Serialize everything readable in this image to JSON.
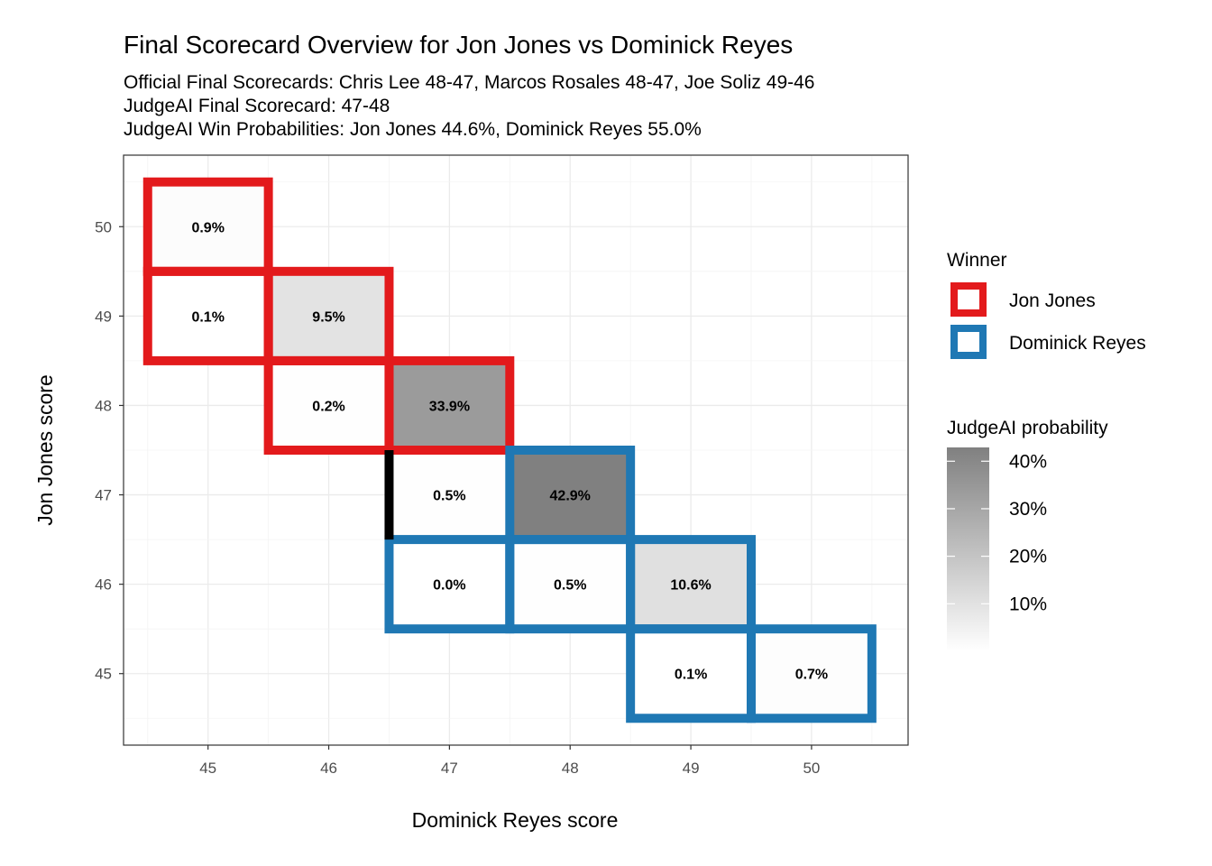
{
  "chart_data": {
    "type": "heatmap",
    "title": "Final Scorecard Overview for Jon Jones vs Dominick Reyes",
    "subtitle_lines": [
      "Official Final Scorecards: Chris Lee 48-47, Marcos Rosales 48-47, Joe Soliz 49-46",
      "JudgeAI Final Scorecard: 47-48",
      "JudgeAI Win Probabilities: Jon Jones 44.6%, Dominick Reyes 55.0%"
    ],
    "xlabel": "Dominick Reyes score",
    "ylabel": "Jon Jones score",
    "x_ticks": [
      45,
      46,
      47,
      48,
      49,
      50
    ],
    "y_ticks": [
      45,
      46,
      47,
      48,
      49,
      50
    ],
    "xlim": [
      44.3,
      50.8
    ],
    "ylim": [
      44.2,
      50.8
    ],
    "grid": true,
    "cells": [
      {
        "x": 45,
        "y": 50,
        "prob": 0.9,
        "label": "0.9%",
        "winner": "Jon Jones"
      },
      {
        "x": 45,
        "y": 49,
        "prob": 0.1,
        "label": "0.1%",
        "winner": "Jon Jones"
      },
      {
        "x": 46,
        "y": 49,
        "prob": 9.5,
        "label": "9.5%",
        "winner": "Jon Jones"
      },
      {
        "x": 46,
        "y": 48,
        "prob": 0.2,
        "label": "0.2%",
        "winner": "Jon Jones"
      },
      {
        "x": 47,
        "y": 48,
        "prob": 33.9,
        "label": "33.9%",
        "winner": "Jon Jones"
      },
      {
        "x": 47,
        "y": 47,
        "prob": 0.5,
        "label": "0.5%",
        "winner": ""
      },
      {
        "x": 48,
        "y": 47,
        "prob": 42.9,
        "label": "42.9%",
        "winner": "Dominick Reyes"
      },
      {
        "x": 47,
        "y": 46,
        "prob": 0.0,
        "label": "0.0%",
        "winner": "Dominick Reyes"
      },
      {
        "x": 48,
        "y": 46,
        "prob": 0.5,
        "label": "0.5%",
        "winner": "Dominick Reyes"
      },
      {
        "x": 49,
        "y": 46,
        "prob": 10.6,
        "label": "10.6%",
        "winner": "Dominick Reyes"
      },
      {
        "x": 49,
        "y": 45,
        "prob": 0.1,
        "label": "0.1%",
        "winner": "Dominick Reyes"
      },
      {
        "x": 50,
        "y": 45,
        "prob": 0.7,
        "label": "0.7%",
        "winner": "Dominick Reyes"
      }
    ],
    "legend": {
      "position": "right",
      "winner_title": "Winner",
      "winners": [
        {
          "name": "Jon Jones",
          "color": "#e31a1c"
        },
        {
          "name": "Dominick Reyes",
          "color": "#1f78b4"
        }
      ],
      "fill_title": "JudgeAI probability",
      "fill_breaks": [
        "40%",
        "30%",
        "20%",
        "10%"
      ],
      "fill_break_values": [
        40,
        30,
        20,
        10
      ],
      "fill_max": 42.9
    },
    "colors": {
      "jones": "#e31a1c",
      "reyes": "#1f78b4",
      "fill_low": "#ffffff",
      "fill_high": "#808080"
    }
  }
}
